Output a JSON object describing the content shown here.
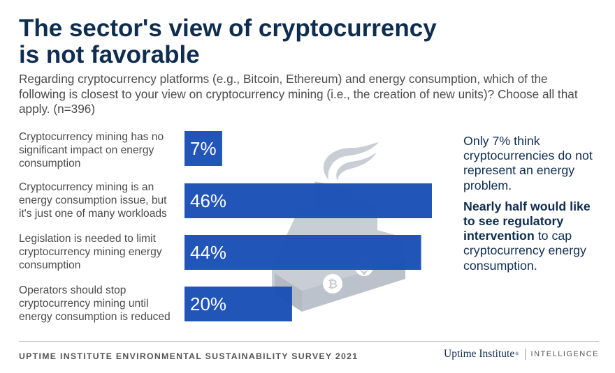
{
  "title": "The sector's view of cryptocurrency is not favorable",
  "subtitle": "Regarding cryptocurrency platforms (e.g., Bitcoin, Ethereum) and energy consumption, which of the following is closest to your view on cryptocurrency mining (i.e., the creation of new units)? Choose all that apply. (n=396)",
  "chart_data": {
    "type": "bar",
    "orientation": "horizontal",
    "categories": [
      "Cryptocurrency mining has no significant impact on energy consumption",
      "Cryptocurrency mining is an energy consumption issue, but it's just one of many workloads",
      "Legislation is needed to limit cryptocurrency mining energy consumption",
      "Operators should stop cryptocurrency mining until energy consumption is reduced"
    ],
    "values": [
      7,
      46,
      44,
      20
    ],
    "value_labels": [
      "7%",
      "46%",
      "44%",
      "20%"
    ],
    "unit": "%",
    "xlim": [
      0,
      46
    ],
    "bar_color": "#1a50b5",
    "value_label_color": "#ffffff",
    "grid": false,
    "legend": "none",
    "background_graphic": "factory-icon"
  },
  "callout": {
    "line1": "Only 7% think cryptocurrencies do not represent an energy problem.",
    "bold": "Nearly half would like to see regulatory intervention",
    "rest": " to cap cryptocurrency energy consumption."
  },
  "footer": {
    "source": "UPTIME INSTITUTE ENVIRONMENTAL SUSTAINABILITY SURVEY 2021",
    "logo_word": "Uptime Institute",
    "logo_tm": "®",
    "logo_sub": "INTELLIGENCE"
  },
  "colors": {
    "title": "#0f2d4f",
    "text": "#4b4b4b",
    "bar": "#1a50b5",
    "factory_icon": "#c9ced6"
  }
}
